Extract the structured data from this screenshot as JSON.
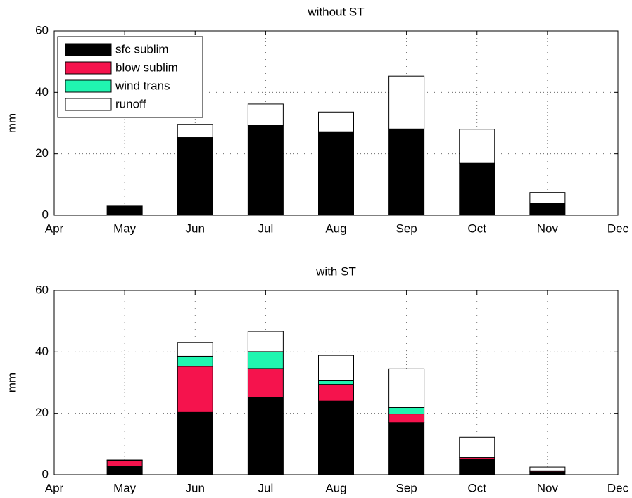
{
  "chart_data": [
    {
      "type": "bar",
      "stacked": true,
      "title": "without ST",
      "y_label": "mm",
      "categories": [
        "Apr",
        "May",
        "Jun",
        "Jul",
        "Aug",
        "Sep",
        "Oct",
        "Nov",
        "Dec"
      ],
      "series": [
        {
          "name": "sfc sublim",
          "color": "#000000",
          "values": [
            null,
            3,
            25.3,
            29.3,
            27.2,
            28.1,
            16.9,
            4,
            null
          ]
        },
        {
          "name": "blow sublim",
          "color": "#f5134d",
          "values": [
            null,
            0,
            0,
            0,
            0,
            0,
            0,
            0,
            null
          ]
        },
        {
          "name": "wind trans",
          "color": "#20f5b0",
          "values": [
            null,
            0,
            0,
            0,
            0,
            0,
            0,
            0,
            null
          ]
        },
        {
          "name": "runoff",
          "color": "#ffffff",
          "values": [
            null,
            0,
            4.3,
            6.9,
            6.4,
            17.2,
            11.1,
            3.4,
            null
          ]
        }
      ],
      "ylim": [
        0,
        60
      ],
      "yticks": [
        0,
        20,
        40,
        60
      ],
      "grid": true,
      "legend": "upper left"
    },
    {
      "type": "bar",
      "stacked": true,
      "title": "with ST",
      "y_label": "mm",
      "categories": [
        "Apr",
        "May",
        "Jun",
        "Jul",
        "Aug",
        "Sep",
        "Oct",
        "Nov",
        "Dec"
      ],
      "series": [
        {
          "name": "sfc sublim",
          "color": "#000000",
          "values": [
            null,
            2.8,
            20.3,
            25.3,
            24,
            17,
            5,
            1,
            null
          ]
        },
        {
          "name": "blow sublim",
          "color": "#f5134d",
          "values": [
            null,
            1.9,
            15,
            9.3,
            5.4,
            2.8,
            0.6,
            0.3,
            null
          ]
        },
        {
          "name": "wind trans",
          "color": "#20f5b0",
          "values": [
            null,
            0,
            3.3,
            5.5,
            1.4,
            2.1,
            0,
            0,
            null
          ]
        },
        {
          "name": "runoff",
          "color": "#ffffff",
          "values": [
            null,
            0.1,
            4.5,
            6.6,
            8.1,
            12.6,
            6.7,
            1.2,
            null
          ]
        }
      ],
      "ylim": [
        0,
        60
      ],
      "yticks": [
        0,
        20,
        40,
        60
      ],
      "grid": true
    }
  ]
}
